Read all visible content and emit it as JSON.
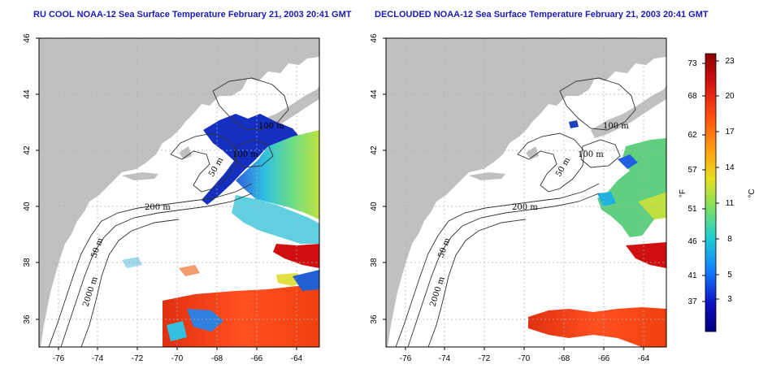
{
  "panels": [
    {
      "id": "left",
      "title": "RU COOL NOAA-12 Sea Surface Temperature February 21, 2003 20:41 GMT",
      "x_ticks": [
        "-76",
        "-74",
        "-72",
        "-70",
        "-68",
        "-66",
        "-64"
      ],
      "y_ticks": [
        "36",
        "38",
        "40",
        "42",
        "44",
        "46"
      ],
      "contour_labels": [
        "100 m",
        "100 m",
        "50 m",
        "200 m",
        "50 m",
        "2000 m"
      ]
    },
    {
      "id": "right",
      "title": "DECLOUDED NOAA-12 Sea Surface Temperature February 21, 2003 20:41 GMT",
      "x_ticks": [
        "-76",
        "-74",
        "-72",
        "-70",
        "-68",
        "-66",
        "-64"
      ],
      "y_ticks": [
        "36",
        "38",
        "40",
        "42",
        "44",
        "46"
      ],
      "contour_labels": [
        "100 m",
        "100 m",
        "50 m",
        "200 m",
        "50 m",
        "2000 m"
      ]
    }
  ],
  "colorbar": {
    "f_label": "°F",
    "c_label": "°C",
    "f_ticks": [
      "73",
      "68",
      "62",
      "57",
      "51",
      "46",
      "41",
      "37"
    ],
    "c_ticks": [
      "23",
      "20",
      "17",
      "14",
      "11",
      "8",
      "5",
      "3"
    ],
    "colors": [
      "#8b0000",
      "#d01010",
      "#ff4a10",
      "#ff9a10",
      "#e8e020",
      "#80e060",
      "#20d0d0",
      "#1080ff",
      "#1010c0",
      "#000080"
    ]
  },
  "map": {
    "land_color": "#c0c0c0",
    "ocean_color": "#ffffff",
    "grid_color": "#b0b0b0",
    "contour_color": "#303030"
  }
}
